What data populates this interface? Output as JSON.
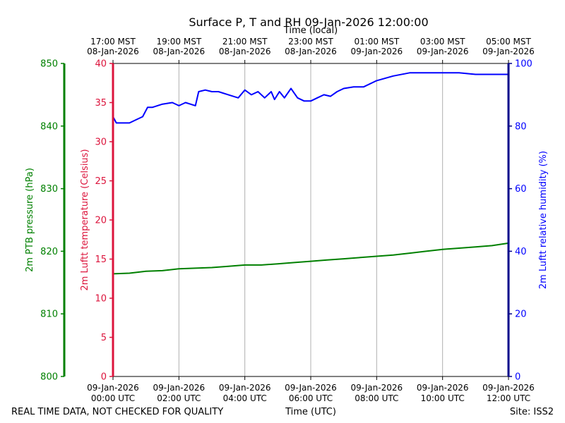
{
  "title": "Surface P, T and RH 09-Jan-2026 12:00:00",
  "colors": {
    "pressure": "#008000",
    "temperature": "#dc143c",
    "humidity": "#0000ff",
    "humidity_axis": "#00008b",
    "grid": "#b0b0b0"
  },
  "footer": {
    "left_note": "REAL TIME DATA, NOT CHECKED FOR QUALITY",
    "site": "Site: ISS2"
  },
  "chart_data": {
    "type": "line",
    "title": "Surface P, T and RH 09-Jan-2026 12:00:00",
    "x": {
      "label": "Time (UTC)",
      "unit": "hours since 09-Jan-2026 00:00 UTC",
      "range": [
        0,
        12
      ],
      "tick_labels": [
        [
          "09-Jan-2026",
          "00:00 UTC"
        ],
        [
          "09-Jan-2026",
          "02:00 UTC"
        ],
        [
          "09-Jan-2026",
          "04:00 UTC"
        ],
        [
          "09-Jan-2026",
          "06:00 UTC"
        ],
        [
          "09-Jan-2026",
          "08:00 UTC"
        ],
        [
          "09-Jan-2026",
          "10:00 UTC"
        ],
        [
          "09-Jan-2026",
          "12:00 UTC"
        ]
      ]
    },
    "x_top": {
      "label": "Time (local)",
      "tick_labels": [
        [
          "17:00 MST",
          "08-Jan-2026"
        ],
        [
          "19:00 MST",
          "08-Jan-2026"
        ],
        [
          "21:00 MST",
          "08-Jan-2026"
        ],
        [
          "23:00 MST",
          "08-Jan-2026"
        ],
        [
          "01:00 MST",
          "09-Jan-2026"
        ],
        [
          "03:00 MST",
          "09-Jan-2026"
        ],
        [
          "05:00 MST",
          "09-Jan-2026"
        ]
      ]
    },
    "axes": [
      {
        "id": "pressure",
        "label": "2m PTB pressure (hPa)",
        "range": [
          800,
          850
        ],
        "ticks": [
          "800",
          "810",
          "820",
          "830",
          "840",
          "850"
        ]
      },
      {
        "id": "temperature",
        "label": "2m Luftt temperature (Celsius)",
        "range": [
          0,
          40
        ],
        "ticks": [
          "0",
          "5",
          "10",
          "15",
          "20",
          "25",
          "30",
          "35",
          "40"
        ]
      },
      {
        "id": "humidity",
        "label": "2m Luftt relative humidity (%)",
        "range": [
          0,
          100
        ],
        "ticks": [
          "0",
          "20",
          "40",
          "60",
          "80",
          "100"
        ]
      }
    ],
    "grid": "vertical",
    "series": [
      {
        "name": "2m PTB pressure (hPa)",
        "axis": "pressure",
        "points": [
          [
            0,
            816.4
          ],
          [
            0.5,
            816.5
          ],
          [
            1,
            816.8
          ],
          [
            1.5,
            816.9
          ],
          [
            2,
            817.2
          ],
          [
            2.5,
            817.3
          ],
          [
            3,
            817.4
          ],
          [
            3.5,
            817.6
          ],
          [
            4,
            817.8
          ],
          [
            4.5,
            817.8
          ],
          [
            5,
            818.0
          ],
          [
            5.5,
            818.2
          ],
          [
            6,
            818.4
          ],
          [
            6.5,
            818.6
          ],
          [
            7,
            818.8
          ],
          [
            7.5,
            819.0
          ],
          [
            8,
            819.2
          ],
          [
            8.5,
            819.4
          ],
          [
            9,
            819.7
          ],
          [
            9.5,
            820.0
          ],
          [
            10,
            820.3
          ],
          [
            10.5,
            820.5
          ],
          [
            11,
            820.7
          ],
          [
            11.5,
            820.9
          ],
          [
            12,
            821.3
          ]
        ]
      },
      {
        "name": "2m Luftt temperature (Celsius)",
        "axis": "temperature",
        "points": []
      },
      {
        "name": "2m Luftt relative humidity (%)",
        "axis": "humidity",
        "points": [
          [
            0,
            83
          ],
          [
            0.1,
            81
          ],
          [
            0.3,
            81
          ],
          [
            0.5,
            81
          ],
          [
            0.7,
            82
          ],
          [
            0.9,
            83
          ],
          [
            1.05,
            86
          ],
          [
            1.2,
            86
          ],
          [
            1.5,
            87
          ],
          [
            1.8,
            87.5
          ],
          [
            2,
            86.5
          ],
          [
            2.2,
            87.5
          ],
          [
            2.5,
            86.5
          ],
          [
            2.6,
            91
          ],
          [
            2.8,
            91.5
          ],
          [
            3,
            91
          ],
          [
            3.2,
            91
          ],
          [
            3.5,
            90
          ],
          [
            3.8,
            89
          ],
          [
            4,
            91.5
          ],
          [
            4.2,
            90
          ],
          [
            4.4,
            91
          ],
          [
            4.6,
            89
          ],
          [
            4.8,
            91
          ],
          [
            4.9,
            88.5
          ],
          [
            5.05,
            91
          ],
          [
            5.2,
            89
          ],
          [
            5.4,
            92
          ],
          [
            5.6,
            89
          ],
          [
            5.8,
            88
          ],
          [
            6,
            88
          ],
          [
            6.2,
            89
          ],
          [
            6.4,
            90
          ],
          [
            6.6,
            89.5
          ],
          [
            6.8,
            91
          ],
          [
            7,
            92
          ],
          [
            7.3,
            92.5
          ],
          [
            7.6,
            92.5
          ],
          [
            8,
            94.5
          ],
          [
            8.5,
            96
          ],
          [
            9,
            97
          ],
          [
            9.5,
            97
          ],
          [
            10,
            97
          ],
          [
            10.5,
            97
          ],
          [
            11,
            96.5
          ],
          [
            11.5,
            96.5
          ],
          [
            12,
            96.5
          ]
        ]
      }
    ]
  }
}
